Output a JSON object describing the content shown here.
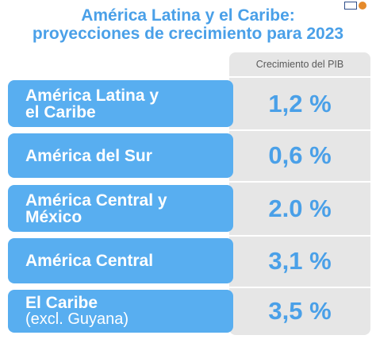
{
  "title": {
    "line1": "América Latina y el Caribe:",
    "line2": "proyecciones de crecimiento para 2023"
  },
  "table": {
    "value_header": "Crecimiento del PIB",
    "rows": [
      {
        "label_line1": "América Latina y",
        "label_line2": "el Caribe",
        "value": "1,2 %"
      },
      {
        "label_line1": "América del Sur",
        "label_line2": "",
        "value": "0,6 %"
      },
      {
        "label_line1": "América Central y",
        "label_line2": "México",
        "value": "2.0 %"
      },
      {
        "label_line1": "América Central",
        "label_line2": "",
        "value": "3,1 %"
      },
      {
        "label_line1": "El Caribe",
        "label_line2": "(excl. Guyana)",
        "value": "3,5 %"
      }
    ]
  },
  "colors": {
    "accent_blue": "#58aef0",
    "title_blue": "#4aa0e8",
    "value_column_gray": "#e6e6e6"
  },
  "icons": {
    "logo": "organization-logo-icon"
  }
}
